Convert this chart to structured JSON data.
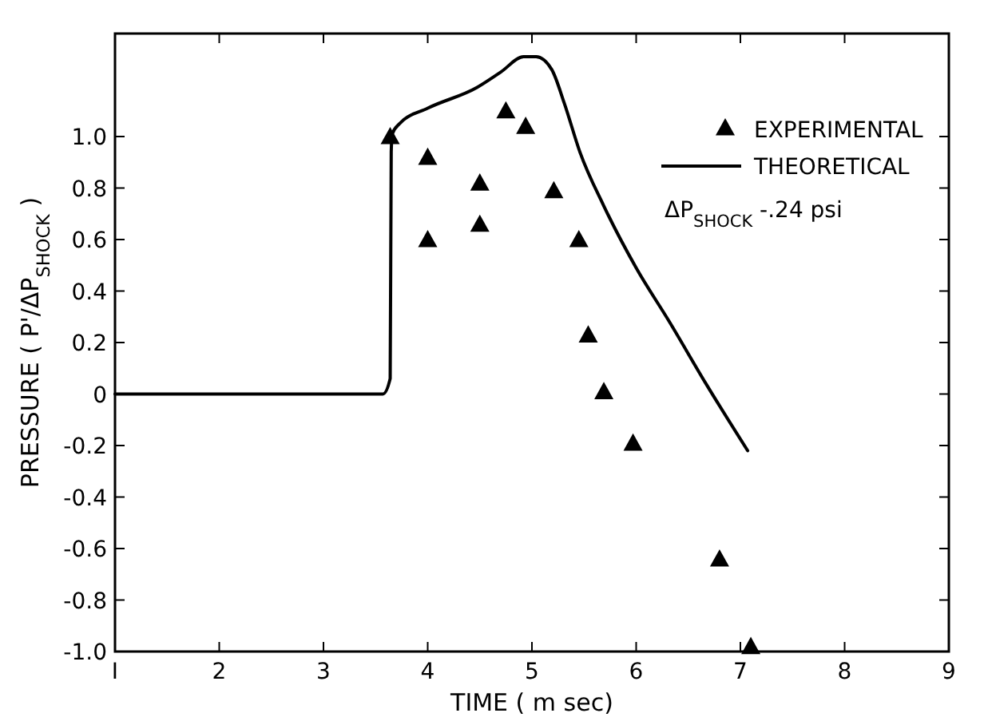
{
  "chart_data": {
    "type": "scatter",
    "xlabel": "TIME  ( m sec)",
    "ylabel": "PRESSURE  ( P'/ΔP$_{SHOCK}$ )",
    "xlim": [
      1,
      9
    ],
    "xticks": [
      {
        "value": 1,
        "label": "I"
      },
      2,
      3,
      4,
      5,
      6,
      7,
      8,
      9
    ],
    "ylim": [
      -1,
      1.4
    ],
    "yticks": [
      {
        "value": -1,
        "label": "-1.0"
      },
      {
        "value": -0.8,
        "label": "-0.8"
      },
      {
        "value": -0.6,
        "label": "-0.6"
      },
      {
        "value": -0.4,
        "label": "-0.4"
      },
      {
        "value": -0.2,
        "label": "-0.2"
      },
      0,
      {
        "value": 0.2,
        "label": "0.2"
      },
      {
        "value": 0.4,
        "label": "0.4"
      },
      {
        "value": 0.6,
        "label": "0.6"
      },
      {
        "value": 0.8,
        "label": "0.8"
      },
      {
        "value": 1,
        "label": "1.0"
      }
    ],
    "legend": "top right",
    "grid": false,
    "annotations": [
      "ΔP$_{SHOCK}$ -.24 psi"
    ],
    "series": [
      {
        "name": "EXPERIMENTAL",
        "marker": "triangle",
        "color": "#000000",
        "x": [
          3.64,
          4.0,
          4.0,
          4.5,
          4.5,
          4.75,
          4.94,
          5.21,
          5.45,
          5.54,
          5.69,
          5.97,
          6.8,
          7.1
        ],
        "values": [
          1.0,
          0.92,
          0.6,
          0.82,
          0.66,
          1.1,
          1.04,
          0.79,
          0.6,
          0.23,
          0.01,
          -0.19,
          -0.64,
          -0.98
        ]
      },
      {
        "name": "THEORETICAL",
        "type": "line",
        "marker": "none",
        "line_style": "solid",
        "color": "#000000",
        "x": [
          1,
          3.57,
          3.64,
          3.65,
          3.66,
          3.73,
          4.0,
          4.47,
          4.7,
          4.92,
          5.04,
          5.19,
          5.31,
          5.46,
          5.69,
          6.0,
          6.32,
          6.67,
          7.07
        ],
        "values": [
          0,
          0,
          0.06,
          0.94,
          1.01,
          1.05,
          1.11,
          1.19,
          1.25,
          1.31,
          1.31,
          1.26,
          1.13,
          0.94,
          0.73,
          0.49,
          0.28,
          0.04,
          -0.22
        ]
      }
    ]
  }
}
